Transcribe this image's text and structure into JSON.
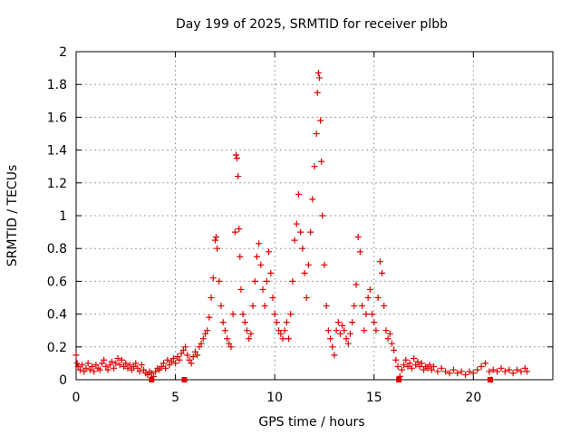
{
  "chart_data": {
    "type": "scatter",
    "title": "Day 199 of 2025, SRMTID for receiver plbb",
    "xlabel": "GPS time / hours",
    "ylabel": "SRMTID / TECUs",
    "xlim": [
      0,
      24
    ],
    "ylim": [
      0,
      2
    ],
    "x_ticks": [
      0,
      5,
      10,
      15,
      20
    ],
    "x_tick_labels": [
      "0",
      "5",
      "10",
      "15",
      "20"
    ],
    "y_ticks": [
      0,
      0.2,
      0.4,
      0.6,
      0.8,
      1,
      1.2,
      1.4,
      1.6,
      1.8,
      2
    ],
    "y_tick_labels": [
      "0",
      "0.2",
      "0.4",
      "0.6",
      "0.8",
      "1",
      "1.2",
      "1.4",
      "1.6",
      "1.8",
      "2"
    ],
    "grid": true,
    "marker": "+",
    "marker_color": "#e00000",
    "series": [
      {
        "name": "SRMTID",
        "points": [
          [
            0.0,
            0.15
          ],
          [
            0.05,
            0.1
          ],
          [
            0.1,
            0.08
          ],
          [
            0.2,
            0.06
          ],
          [
            0.3,
            0.09
          ],
          [
            0.4,
            0.05
          ],
          [
            0.5,
            0.07
          ],
          [
            0.6,
            0.1
          ],
          [
            0.7,
            0.06
          ],
          [
            0.8,
            0.08
          ],
          [
            0.9,
            0.05
          ],
          [
            1.0,
            0.09
          ],
          [
            1.1,
            0.07
          ],
          [
            1.2,
            0.06
          ],
          [
            1.3,
            0.1
          ],
          [
            1.4,
            0.12
          ],
          [
            1.5,
            0.08
          ],
          [
            1.6,
            0.06
          ],
          [
            1.7,
            0.09
          ],
          [
            1.8,
            0.11
          ],
          [
            1.9,
            0.07
          ],
          [
            2.0,
            0.1
          ],
          [
            2.1,
            0.13
          ],
          [
            2.2,
            0.09
          ],
          [
            2.3,
            0.12
          ],
          [
            2.4,
            0.08
          ],
          [
            2.5,
            0.1
          ],
          [
            2.6,
            0.07
          ],
          [
            2.7,
            0.09
          ],
          [
            2.8,
            0.06
          ],
          [
            2.9,
            0.08
          ],
          [
            3.0,
            0.1
          ],
          [
            3.1,
            0.07
          ],
          [
            3.2,
            0.05
          ],
          [
            3.3,
            0.09
          ],
          [
            3.4,
            0.06
          ],
          [
            3.5,
            0.04
          ],
          [
            3.6,
            0.03
          ],
          [
            3.7,
            0.05
          ],
          [
            3.8,
            0.04
          ],
          [
            3.9,
            0.02
          ],
          [
            4.0,
            0.05
          ],
          [
            4.1,
            0.07
          ],
          [
            4.2,
            0.06
          ],
          [
            4.3,
            0.08
          ],
          [
            4.4,
            0.1
          ],
          [
            4.5,
            0.07
          ],
          [
            4.6,
            0.12
          ],
          [
            4.7,
            0.09
          ],
          [
            4.8,
            0.11
          ],
          [
            4.9,
            0.13
          ],
          [
            5.0,
            0.1
          ],
          [
            5.1,
            0.14
          ],
          [
            5.2,
            0.12
          ],
          [
            5.3,
            0.16
          ],
          [
            5.4,
            0.18
          ],
          [
            5.5,
            0.2
          ],
          [
            5.6,
            0.15
          ],
          [
            5.7,
            0.12
          ],
          [
            5.8,
            0.1
          ],
          [
            5.9,
            0.14
          ],
          [
            6.0,
            0.17
          ],
          [
            6.1,
            0.15
          ],
          [
            6.2,
            0.2
          ],
          [
            6.3,
            0.22
          ],
          [
            6.4,
            0.25
          ],
          [
            6.5,
            0.28
          ],
          [
            6.6,
            0.3
          ],
          [
            6.7,
            0.38
          ],
          [
            6.8,
            0.5
          ],
          [
            6.9,
            0.62
          ],
          [
            7.0,
            0.85
          ],
          [
            7.05,
            0.87
          ],
          [
            7.1,
            0.8
          ],
          [
            7.2,
            0.6
          ],
          [
            7.3,
            0.45
          ],
          [
            7.4,
            0.35
          ],
          [
            7.5,
            0.3
          ],
          [
            7.6,
            0.25
          ],
          [
            7.7,
            0.22
          ],
          [
            7.8,
            0.2
          ],
          [
            7.9,
            0.4
          ],
          [
            8.0,
            0.9
          ],
          [
            8.05,
            1.37
          ],
          [
            8.1,
            1.35
          ],
          [
            8.15,
            1.24
          ],
          [
            8.2,
            0.92
          ],
          [
            8.25,
            0.75
          ],
          [
            8.3,
            0.55
          ],
          [
            8.4,
            0.4
          ],
          [
            8.5,
            0.35
          ],
          [
            8.6,
            0.3
          ],
          [
            8.7,
            0.25
          ],
          [
            8.8,
            0.28
          ],
          [
            8.9,
            0.45
          ],
          [
            9.0,
            0.6
          ],
          [
            9.1,
            0.75
          ],
          [
            9.2,
            0.83
          ],
          [
            9.3,
            0.7
          ],
          [
            9.4,
            0.55
          ],
          [
            9.5,
            0.45
          ],
          [
            9.6,
            0.6
          ],
          [
            9.7,
            0.78
          ],
          [
            9.8,
            0.65
          ],
          [
            9.9,
            0.5
          ],
          [
            10.0,
            0.4
          ],
          [
            10.1,
            0.35
          ],
          [
            10.2,
            0.3
          ],
          [
            10.3,
            0.28
          ],
          [
            10.4,
            0.25
          ],
          [
            10.5,
            0.3
          ],
          [
            10.6,
            0.35
          ],
          [
            10.7,
            0.25
          ],
          [
            10.8,
            0.4
          ],
          [
            10.9,
            0.6
          ],
          [
            11.0,
            0.85
          ],
          [
            11.1,
            0.95
          ],
          [
            11.2,
            1.13
          ],
          [
            11.3,
            0.9
          ],
          [
            11.4,
            0.8
          ],
          [
            11.5,
            0.65
          ],
          [
            11.6,
            0.5
          ],
          [
            11.7,
            0.7
          ],
          [
            11.8,
            0.9
          ],
          [
            11.9,
            1.1
          ],
          [
            12.0,
            1.3
          ],
          [
            12.1,
            1.5
          ],
          [
            12.15,
            1.75
          ],
          [
            12.2,
            1.87
          ],
          [
            12.25,
            1.84
          ],
          [
            12.3,
            1.58
          ],
          [
            12.35,
            1.33
          ],
          [
            12.4,
            1.0
          ],
          [
            12.5,
            0.7
          ],
          [
            12.6,
            0.45
          ],
          [
            12.7,
            0.3
          ],
          [
            12.8,
            0.25
          ],
          [
            12.9,
            0.2
          ],
          [
            13.0,
            0.15
          ],
          [
            13.1,
            0.3
          ],
          [
            13.2,
            0.35
          ],
          [
            13.3,
            0.28
          ],
          [
            13.4,
            0.33
          ],
          [
            13.5,
            0.3
          ],
          [
            13.6,
            0.25
          ],
          [
            13.7,
            0.22
          ],
          [
            13.8,
            0.28
          ],
          [
            13.9,
            0.35
          ],
          [
            14.0,
            0.45
          ],
          [
            14.1,
            0.58
          ],
          [
            14.2,
            0.87
          ],
          [
            14.3,
            0.78
          ],
          [
            14.4,
            0.45
          ],
          [
            14.5,
            0.3
          ],
          [
            14.6,
            0.4
          ],
          [
            14.7,
            0.5
          ],
          [
            14.8,
            0.55
          ],
          [
            14.9,
            0.4
          ],
          [
            15.0,
            0.35
          ],
          [
            15.1,
            0.3
          ],
          [
            15.2,
            0.5
          ],
          [
            15.3,
            0.72
          ],
          [
            15.4,
            0.65
          ],
          [
            15.5,
            0.45
          ],
          [
            15.6,
            0.3
          ],
          [
            15.7,
            0.25
          ],
          [
            15.8,
            0.28
          ],
          [
            15.9,
            0.22
          ],
          [
            16.0,
            0.18
          ],
          [
            16.1,
            0.12
          ],
          [
            16.2,
            0.08
          ],
          [
            16.3,
            0.02
          ],
          [
            16.4,
            0.06
          ],
          [
            16.5,
            0.09
          ],
          [
            16.6,
            0.12
          ],
          [
            16.7,
            0.08
          ],
          [
            16.8,
            0.1
          ],
          [
            16.9,
            0.07
          ],
          [
            17.0,
            0.13
          ],
          [
            17.1,
            0.09
          ],
          [
            17.2,
            0.11
          ],
          [
            17.3,
            0.08
          ],
          [
            17.4,
            0.1
          ],
          [
            17.5,
            0.06
          ],
          [
            17.6,
            0.08
          ],
          [
            17.7,
            0.07
          ],
          [
            17.8,
            0.09
          ],
          [
            17.9,
            0.06
          ],
          [
            18.0,
            0.08
          ],
          [
            18.2,
            0.05
          ],
          [
            18.4,
            0.07
          ],
          [
            18.6,
            0.05
          ],
          [
            18.8,
            0.04
          ],
          [
            19.0,
            0.06
          ],
          [
            19.2,
            0.04
          ],
          [
            19.4,
            0.05
          ],
          [
            19.6,
            0.03
          ],
          [
            19.8,
            0.05
          ],
          [
            20.0,
            0.04
          ],
          [
            20.2,
            0.06
          ],
          [
            20.4,
            0.08
          ],
          [
            20.6,
            0.1
          ],
          [
            20.8,
            0.05
          ],
          [
            20.9,
            0.0
          ],
          [
            21.0,
            0.06
          ],
          [
            21.2,
            0.05
          ],
          [
            21.4,
            0.07
          ],
          [
            21.6,
            0.05
          ],
          [
            21.8,
            0.06
          ],
          [
            22.0,
            0.04
          ],
          [
            22.2,
            0.06
          ],
          [
            22.4,
            0.05
          ],
          [
            22.6,
            0.07
          ],
          [
            22.7,
            0.05
          ]
        ],
        "zero_points": [
          [
            3.8,
            0.0
          ],
          [
            5.45,
            0.0
          ],
          [
            16.25,
            0.0
          ],
          [
            20.85,
            0.0
          ]
        ]
      }
    ]
  }
}
